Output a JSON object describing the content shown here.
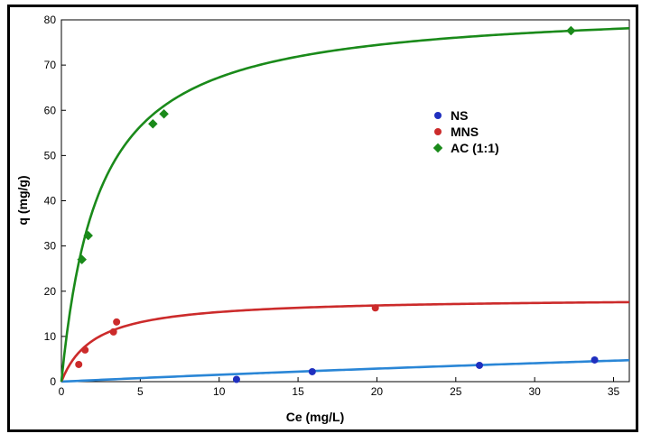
{
  "chart_data": {
    "type": "scatter",
    "title": "",
    "xlabel": "Ce (mg/L)",
    "ylabel": "q (mg/g)",
    "xlim": [
      0,
      36
    ],
    "ylim": [
      0,
      80
    ],
    "xticks": [
      0,
      5,
      10,
      15,
      20,
      25,
      30,
      35
    ],
    "yticks": [
      0,
      10,
      20,
      30,
      40,
      50,
      60,
      70,
      80
    ],
    "grid": false,
    "legend_position": "upper-right-center",
    "series": [
      {
        "name": "NS",
        "marker": "circle",
        "color": "#1f2fbf",
        "line_color": "#2a86d6",
        "points": [
          [
            11.1,
            0.5
          ],
          [
            15.9,
            2.2
          ],
          [
            26.5,
            3.6
          ],
          [
            33.8,
            4.8
          ]
        ],
        "fit": {
          "model": "langmuir",
          "qmax": 25,
          "K": 0.0065
        }
      },
      {
        "name": "MNS",
        "marker": "circle",
        "color": "#cc2b2b",
        "line_color": "#cc2b2b",
        "points": [
          [
            1.1,
            3.8
          ],
          [
            1.5,
            7.0
          ],
          [
            3.3,
            11.0
          ],
          [
            3.5,
            13.2
          ],
          [
            19.9,
            16.3
          ]
        ],
        "fit": {
          "model": "langmuir",
          "qmax": 18.6,
          "K": 0.48
        }
      },
      {
        "name": "AC (1:1)",
        "marker": "diamond",
        "color": "#1a8a1a",
        "line_color": "#1a8a1a",
        "points": [
          [
            1.3,
            27.0
          ],
          [
            1.7,
            32.3
          ],
          [
            5.8,
            57.0
          ],
          [
            6.5,
            59.2
          ],
          [
            32.3,
            77.6
          ]
        ],
        "fit": {
          "model": "langmuir",
          "qmax": 83.3,
          "K": 0.42
        }
      }
    ]
  }
}
